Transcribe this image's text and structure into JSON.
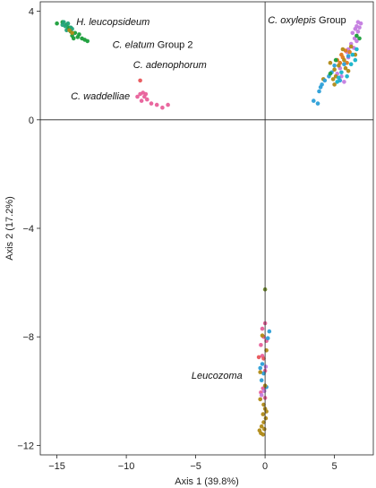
{
  "chart_data": {
    "type": "scatter",
    "title": "",
    "xlabel": "Axis 1 (39.8%)",
    "ylabel": "Axis 2 (17.2%)",
    "xlim": [
      -16.2,
      7.8
    ],
    "ylim": [
      -12.35,
      4.35
    ],
    "xticks": [
      -15,
      -10,
      -5,
      0,
      5
    ],
    "xtick_labels": [
      "−15",
      "−10",
      "−5",
      "0",
      "5"
    ],
    "yticks": [
      4,
      0,
      -4,
      -8,
      -12
    ],
    "ytick_labels": [
      "4",
      "0",
      "−4",
      "−8",
      "−12"
    ],
    "grid": false,
    "reference_lines": {
      "x": 0,
      "y": 0
    },
    "colors": {
      "green": "#1a9e3a",
      "teal": "#23a37a",
      "gold": "#b08a16",
      "orange": "#e07a1e",
      "blue": "#2b9fd8",
      "cyan": "#16b3c9",
      "purple": "#c47ce0",
      "pink": "#e8609a",
      "red": "#e8555a",
      "olive": "#6e8a2a"
    },
    "annotations": [
      {
        "key": "hl",
        "x": -13.6,
        "y": 3.5,
        "parts": [
          {
            "text": "H. leucopsideum",
            "italic": true
          }
        ]
      },
      {
        "key": "ce",
        "x": -11.0,
        "y": 2.65,
        "parts": [
          {
            "text": "C. elatum",
            "italic": true
          },
          {
            "text": " Group 2",
            "italic": false
          }
        ]
      },
      {
        "key": "ca",
        "x": -9.5,
        "y": 1.9,
        "parts": [
          {
            "text": "C. adenophorum",
            "italic": true
          }
        ]
      },
      {
        "key": "cw",
        "x": -14.0,
        "y": 0.75,
        "parts": [
          {
            "text": "C. waddelliae",
            "italic": true
          }
        ]
      },
      {
        "key": "co",
        "x": 0.2,
        "y": 3.55,
        "parts": [
          {
            "text": "C. oxylepis",
            "italic": true
          },
          {
            "text": " Group",
            "italic": false
          }
        ]
      },
      {
        "key": "lz",
        "x": -5.3,
        "y": -9.55,
        "parts": [
          {
            "text": "Leucozoma",
            "italic": true
          }
        ]
      }
    ],
    "series": [
      {
        "color": "green",
        "points": [
          [
            -15.0,
            3.55
          ],
          [
            -14.6,
            3.6
          ],
          [
            -14.3,
            3.5
          ],
          [
            -14.2,
            3.35
          ],
          [
            -14.0,
            3.25
          ],
          [
            -13.9,
            3.1
          ],
          [
            -13.7,
            3.2
          ],
          [
            -13.5,
            3.05
          ],
          [
            -13.2,
            3.0
          ],
          [
            -13.0,
            2.95
          ],
          [
            -12.8,
            2.9
          ],
          [
            -13.4,
            3.15
          ],
          [
            -14.1,
            3.4
          ],
          [
            -13.8,
            3.0
          ]
        ]
      },
      {
        "color": "teal",
        "points": [
          [
            -14.6,
            3.5
          ],
          [
            -14.4,
            3.45
          ],
          [
            -14.2,
            3.55
          ],
          [
            -14.0,
            3.4
          ],
          [
            -14.3,
            3.3
          ],
          [
            -13.9,
            3.35
          ],
          [
            -14.5,
            3.6
          ]
        ]
      },
      {
        "color": "gold",
        "points": [
          [
            -14.1,
            3.3
          ],
          [
            -13.9,
            3.2
          ]
        ]
      },
      {
        "color": "red",
        "points": [
          [
            -9.0,
            1.45
          ]
        ]
      },
      {
        "color": "pink",
        "points": [
          [
            -9.2,
            0.85
          ],
          [
            -9.0,
            0.95
          ],
          [
            -8.8,
            1.0
          ],
          [
            -8.7,
            0.85
          ],
          [
            -8.5,
            0.75
          ],
          [
            -8.9,
            0.7
          ],
          [
            -8.2,
            0.6
          ],
          [
            -7.8,
            0.55
          ],
          [
            -7.4,
            0.45
          ],
          [
            -7.0,
            0.55
          ],
          [
            -8.6,
            0.95
          ]
        ]
      },
      {
        "color": "purple",
        "points": [
          [
            6.0,
            2.6
          ],
          [
            6.3,
            3.2
          ],
          [
            6.5,
            3.35
          ],
          [
            6.6,
            3.45
          ],
          [
            6.8,
            3.4
          ],
          [
            6.9,
            3.55
          ],
          [
            6.7,
            3.25
          ],
          [
            6.45,
            3.0
          ],
          [
            6.2,
            2.8
          ],
          [
            5.9,
            2.5
          ],
          [
            6.6,
            2.9
          ],
          [
            6.4,
            2.65
          ],
          [
            5.4,
            1.9
          ],
          [
            5.5,
            1.6
          ],
          [
            5.7,
            1.4
          ],
          [
            6.7,
            3.6
          ],
          [
            6.0,
            2.3
          ],
          [
            5.2,
            1.7
          ]
        ]
      },
      {
        "color": "orange",
        "points": [
          [
            5.5,
            2.4
          ],
          [
            5.8,
            2.55
          ],
          [
            5.2,
            2.2
          ],
          [
            5.6,
            2.3
          ],
          [
            6.1,
            2.5
          ],
          [
            5.9,
            2.1
          ],
          [
            5.4,
            2.1
          ]
        ]
      },
      {
        "color": "gold",
        "points": [
          [
            5.0,
            1.85
          ],
          [
            5.3,
            2.0
          ],
          [
            5.7,
            2.2
          ],
          [
            5.6,
            2.6
          ],
          [
            5.1,
            1.6
          ],
          [
            6.2,
            2.7
          ],
          [
            5.8,
            1.9
          ],
          [
            4.9,
            1.5
          ],
          [
            6.5,
            2.4
          ],
          [
            4.7,
            2.1
          ],
          [
            4.2,
            1.5
          ],
          [
            5.0,
            1.3
          ],
          [
            6.0,
            1.8
          ]
        ]
      },
      {
        "color": "blue",
        "points": [
          [
            3.5,
            0.7
          ],
          [
            3.8,
            0.6
          ],
          [
            3.9,
            1.05
          ],
          [
            4.0,
            1.2
          ],
          [
            4.1,
            1.3
          ],
          [
            4.3,
            1.45
          ],
          [
            4.6,
            1.6
          ],
          [
            4.8,
            1.75
          ],
          [
            5.0,
            2.0
          ],
          [
            5.4,
            1.45
          ],
          [
            5.7,
            2.05
          ],
          [
            6.0,
            2.35
          ]
        ]
      },
      {
        "color": "cyan",
        "points": [
          [
            5.3,
            1.55
          ],
          [
            5.5,
            1.75
          ],
          [
            6.2,
            2.05
          ],
          [
            5.9,
            1.6
          ],
          [
            6.6,
            2.6
          ],
          [
            6.5,
            2.2
          ],
          [
            6.3,
            2.4
          ],
          [
            5.2,
            1.4
          ]
        ]
      },
      {
        "color": "green",
        "points": [
          [
            4.7,
            1.7
          ],
          [
            5.1,
            2.2
          ],
          [
            6.6,
            3.1
          ],
          [
            6.8,
            3.0
          ]
        ]
      },
      {
        "color": "olive",
        "points": [
          [
            0.0,
            -6.25
          ]
        ]
      },
      {
        "color": "pink",
        "points": [
          [
            0.0,
            -7.5
          ],
          [
            -0.2,
            -7.7
          ],
          [
            -0.1,
            -8.0
          ],
          [
            0.1,
            -8.15
          ],
          [
            -0.3,
            -8.3
          ],
          [
            -0.2,
            -8.7
          ],
          [
            0.0,
            -9.25
          ],
          [
            -0.15,
            -9.9
          ],
          [
            0.0,
            -10.25
          ],
          [
            -0.3,
            -10.05
          ]
        ]
      },
      {
        "color": "blue",
        "points": [
          [
            0.3,
            -7.8
          ],
          [
            0.2,
            -8.05
          ],
          [
            -0.2,
            -9.0
          ],
          [
            -0.35,
            -9.15
          ],
          [
            -0.1,
            -9.35
          ],
          [
            -0.25,
            -9.6
          ],
          [
            0.1,
            -9.85
          ]
        ]
      },
      {
        "color": "red",
        "points": [
          [
            -0.45,
            -8.75
          ],
          [
            -0.1,
            -8.8
          ]
        ]
      },
      {
        "color": "purple",
        "points": [
          [
            -0.25,
            -10.15
          ],
          [
            -0.05,
            -10.0
          ],
          [
            0.05,
            -9.1
          ]
        ]
      },
      {
        "color": "gold",
        "points": [
          [
            -0.2,
            -7.95
          ],
          [
            0.1,
            -8.5
          ],
          [
            -0.35,
            -9.3
          ],
          [
            -0.1,
            -10.5
          ],
          [
            0.0,
            -10.65
          ],
          [
            -0.15,
            -10.85
          ],
          [
            0.05,
            -11.0
          ],
          [
            -0.1,
            -11.15
          ],
          [
            -0.25,
            -11.3
          ],
          [
            -0.4,
            -11.45
          ],
          [
            -0.3,
            -11.55
          ],
          [
            -0.15,
            -11.6
          ],
          [
            -0.05,
            -11.4
          ],
          [
            0.1,
            -10.75
          ],
          [
            -0.35,
            -10.3
          ],
          [
            0.0,
            -9.8
          ]
        ]
      }
    ]
  }
}
